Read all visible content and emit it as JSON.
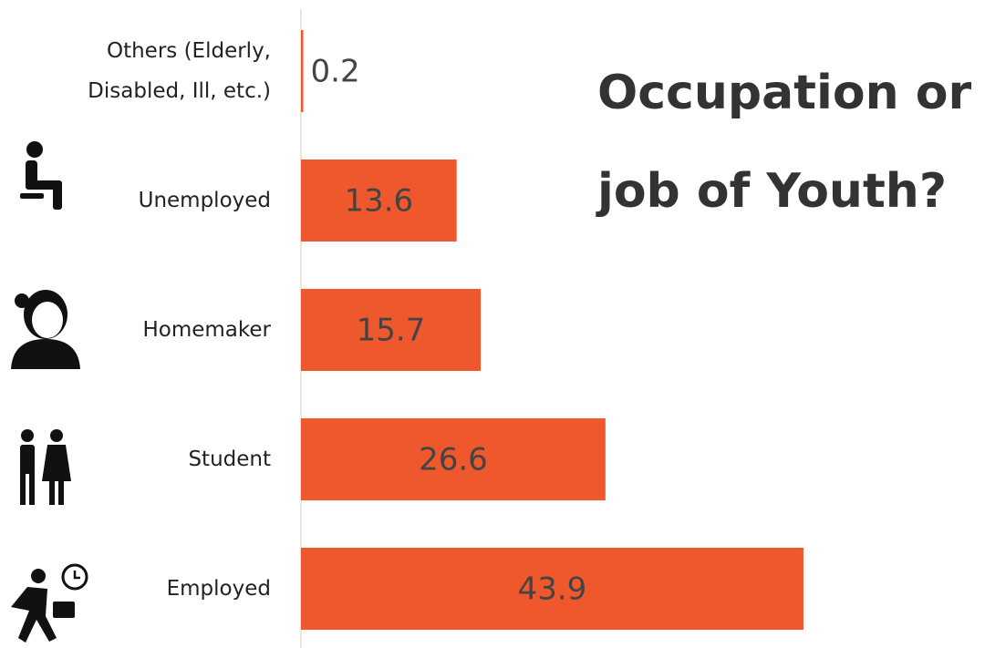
{
  "chart_data": {
    "type": "bar",
    "orientation": "horizontal",
    "title": "Occupation or job of Youth?",
    "categories": [
      "Others (Elderly, Disabled, Ill, etc.)",
      "Unemployed",
      "Homemaker",
      "Student",
      "Employed"
    ],
    "values": [
      0.2,
      13.6,
      15.7,
      26.6,
      43.9
    ],
    "color": "#ee582c",
    "xlim": [
      0,
      60
    ]
  }
}
